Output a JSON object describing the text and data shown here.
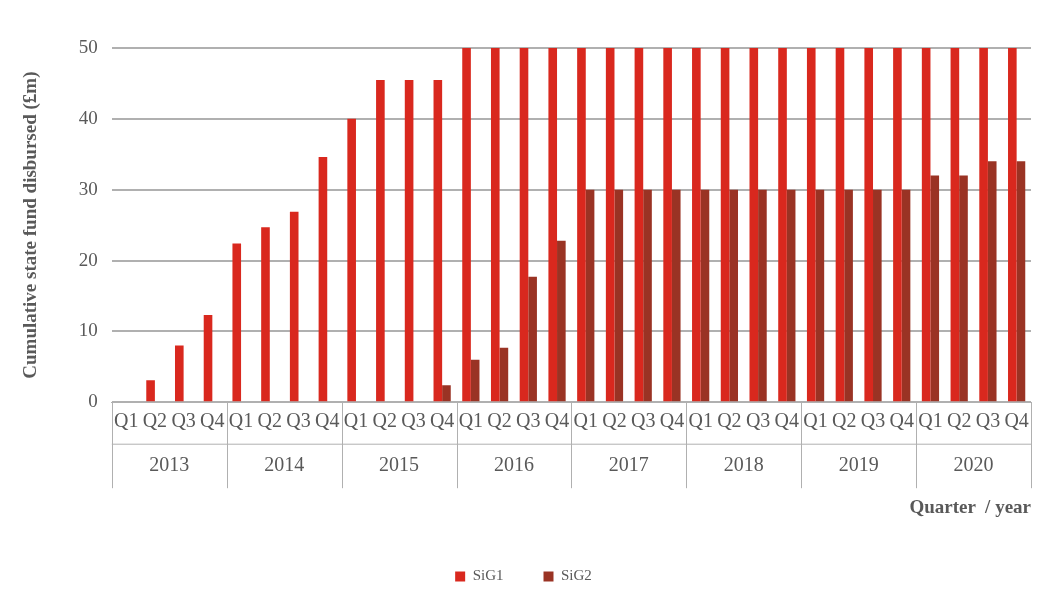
{
  "chart_data": {
    "type": "bar",
    "categories": [
      "Q1",
      "Q2",
      "Q3",
      "Q4",
      "Q1",
      "Q2",
      "Q3",
      "Q4",
      "Q1",
      "Q2",
      "Q3",
      "Q4",
      "Q1",
      "Q2",
      "Q3",
      "Q4",
      "Q1",
      "Q2",
      "Q3",
      "Q4",
      "Q1",
      "Q2",
      "Q3",
      "Q4",
      "Q1",
      "Q2",
      "Q3",
      "Q4",
      "Q1",
      "Q2",
      "Q3",
      "Q4"
    ],
    "annotations": [
      "2013",
      "2014",
      "2015",
      "2016",
      "2017",
      "2018",
      "2019",
      "2020"
    ],
    "xlabel": "Quarter  / year",
    "ylabel": "Cumulative state fund disbursed (£m)",
    "series": [
      {
        "name": "SiG1",
        "color": "#d9281e",
        "values": [
          0,
          3.1,
          8,
          12.3,
          22.4,
          24.7,
          26.9,
          34.6,
          40,
          45.5,
          45.5,
          45.5,
          50,
          50,
          50,
          50,
          50,
          50,
          50,
          50,
          50,
          50,
          50,
          50,
          50,
          50,
          50,
          50,
          50,
          50,
          50,
          50
        ]
      },
      {
        "name": "SiG2",
        "color": "#9a3324",
        "values": [
          0,
          0,
          0,
          0,
          0,
          0,
          0,
          0,
          0,
          0,
          0,
          2.4,
          6,
          7.7,
          17.7,
          22.8,
          30,
          30,
          30,
          30,
          30,
          30,
          30,
          30,
          30,
          30,
          30,
          30,
          32,
          32,
          34,
          34
        ]
      }
    ],
    "ylim": [
      0,
      50
    ],
    "yticks": [
      0,
      10,
      20,
      30,
      40,
      50
    ],
    "grid": "y",
    "legend": "bottom"
  }
}
